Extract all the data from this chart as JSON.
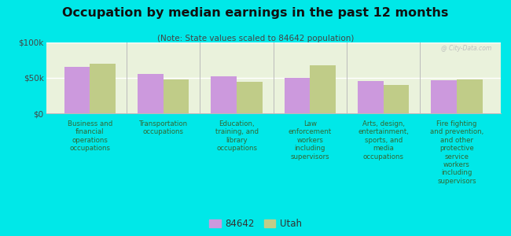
{
  "title": "Occupation by median earnings in the past 12 months",
  "subtitle": "(Note: State values scaled to 84642 population)",
  "background_color": "#00e8e8",
  "plot_bg_color": "#eaf2dc",
  "categories": [
    "Business and\nfinancial\noperations\noccupations",
    "Transportation\noccupations",
    "Education,\ntraining, and\nlibrary\noccupations",
    "Law\nenforcement\nworkers\nincluding\nsupervisors",
    "Arts, design,\nentertainment,\nsports, and\nmedia\noccupations",
    "Fire fighting\nand prevention,\nand other\nprotective\nservice\nworkers\nincluding\nsupervisors"
  ],
  "values_84642": [
    65000,
    55000,
    52000,
    50000,
    46000,
    47000
  ],
  "values_utah": [
    70000,
    48000,
    44000,
    68000,
    40000,
    48000
  ],
  "color_84642": "#cc99dd",
  "color_utah": "#c0cc88",
  "ylim": [
    0,
    100000
  ],
  "ytick_labels": [
    "$0",
    "$50k",
    "$100k"
  ],
  "legend_labels": [
    "84642",
    "Utah"
  ],
  "bar_width": 0.35,
  "watermark": "@ City-Data.com"
}
